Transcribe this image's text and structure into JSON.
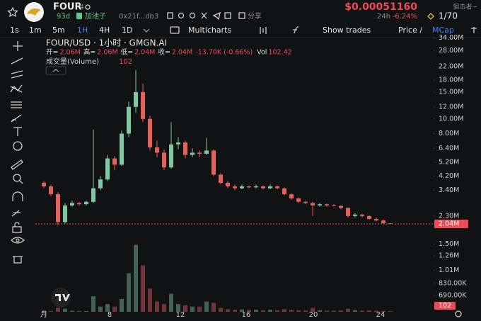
{
  "header": {
    "symbol": "FOUR",
    "holders": "4",
    "age": "93d",
    "add_pool": "加池子",
    "address": "0x21f...db3",
    "share": "分享",
    "price": "$0.00051160",
    "snipers": "狙击者~",
    "change_period": "24h",
    "change": "-6.24%",
    "rank": "1/70"
  },
  "toolbar": {
    "intervals": [
      "1s",
      "1m",
      "5m",
      "1H",
      "4H",
      "1D"
    ],
    "active_interval": "1H",
    "multicharts": "Multicharts",
    "show_trades": "Show trades",
    "price": "Price /",
    "mcap": "MCap"
  },
  "chart_data": {
    "type": "candlestick",
    "title": "FOUR/USD · 1小时 · GMGN.AI",
    "ohlc_keys": [
      "开=",
      "高=",
      "低=",
      "收="
    ],
    "ohlc_values": [
      "2.06M",
      "2.06M",
      "2.04M",
      "2.04M"
    ],
    "change": "-13.70K (-0.66%)",
    "volume_key": "Vol",
    "volume_title": "成交量(Volume)",
    "last_volume_label": "102",
    "log_scale": true,
    "grid": false,
    "up_color": "#7fc8a0",
    "down_color": "#e8605a",
    "x": [
      0,
      10,
      20,
      30,
      40,
      50,
      60,
      70,
      80,
      90,
      100,
      110,
      120,
      130,
      140,
      150,
      160,
      170,
      180,
      190,
      200,
      210,
      220,
      230,
      240,
      250,
      260,
      270,
      280,
      290,
      300,
      310,
      320,
      330,
      340,
      350,
      360,
      370,
      380,
      390,
      400,
      410,
      420,
      430,
      440,
      450,
      460,
      470,
      480,
      490
    ],
    "xlim": [
      -12,
      550
    ],
    "xticks": [
      {
        "value": 0,
        "label": "月"
      },
      {
        "value": 93,
        "label": "8"
      },
      {
        "value": 193,
        "label": "12"
      },
      {
        "value": 286,
        "label": "16"
      },
      {
        "value": 381,
        "label": "20"
      },
      {
        "value": 476,
        "label": "24"
      }
    ],
    "ylim": [
      540000,
      34600000
    ],
    "yticks": [
      {
        "value": 34000000,
        "label": "34.00M"
      },
      {
        "value": 28000000,
        "label": "28.00M"
      },
      {
        "value": 22000000,
        "label": "22.00M"
      },
      {
        "value": 18000000,
        "label": "18.00M"
      },
      {
        "value": 15000000,
        "label": "15.00M"
      },
      {
        "value": 12000000,
        "label": "12.00M"
      },
      {
        "value": 10000000,
        "label": "10.00M"
      },
      {
        "value": 8000000,
        "label": "8.00M"
      },
      {
        "value": 6400000,
        "label": "6.40M"
      },
      {
        "value": 5200000,
        "label": "5.20M"
      },
      {
        "value": 4200000,
        "label": "4.20M"
      },
      {
        "value": 3400000,
        "label": "3.40M"
      },
      {
        "value": 2300000,
        "label": "2.30M"
      },
      {
        "value": 1500000,
        "label": "1.50M"
      },
      {
        "value": 1260000,
        "label": "1.26M"
      },
      {
        "value": 1010000,
        "label": "1.01M"
      },
      {
        "value": 830000,
        "label": "830.00K"
      },
      {
        "value": 690000,
        "label": "690.00K"
      }
    ],
    "last_price": {
      "value": 2040000,
      "label": "2.04M"
    },
    "ohlc": [
      [
        3800000,
        3900000,
        3500000,
        3600000
      ],
      [
        3600000,
        3700000,
        3100000,
        3200000
      ],
      [
        3200000,
        3300000,
        2000000,
        2100000
      ],
      [
        2100000,
        2800000,
        2050000,
        2700000
      ],
      [
        2700000,
        2900000,
        2650000,
        2800000
      ],
      [
        2800000,
        2850000,
        2700000,
        2750000
      ],
      [
        2750000,
        2900000,
        2700000,
        2850000
      ],
      [
        2850000,
        8500000,
        2800000,
        3500000
      ],
      [
        3500000,
        4200000,
        3400000,
        4000000
      ],
      [
        4000000,
        5800000,
        3900000,
        5500000
      ],
      [
        5500000,
        5700000,
        4600000,
        5000000
      ],
      [
        5000000,
        8400000,
        4900000,
        8000000
      ],
      [
        8000000,
        13000000,
        7600000,
        12000000
      ],
      [
        12000000,
        21000000,
        11000000,
        15000000
      ],
      [
        15000000,
        17000000,
        9500000,
        10000000
      ],
      [
        10000000,
        10500000,
        6200000,
        6500000
      ],
      [
        6500000,
        7200000,
        5600000,
        6000000
      ],
      [
        6000000,
        6300000,
        4600000,
        4800000
      ],
      [
        4800000,
        9500000,
        4700000,
        6800000
      ],
      [
        6800000,
        7600000,
        6300000,
        7000000
      ],
      [
        7000000,
        7200000,
        5500000,
        5800000
      ],
      [
        5800000,
        6400000,
        5600000,
        6000000
      ],
      [
        6000000,
        6200000,
        5600000,
        5900000
      ],
      [
        5900000,
        7500000,
        5800000,
        6200000
      ],
      [
        6200000,
        6300000,
        4200000,
        4300000
      ],
      [
        4300000,
        4400000,
        3700000,
        3800000
      ],
      [
        3800000,
        3900000,
        3500000,
        3600000
      ],
      [
        3600000,
        3700000,
        3400000,
        3500000
      ],
      [
        3500000,
        3700000,
        3450000,
        3600000
      ],
      [
        3600000,
        3650000,
        3500000,
        3550000
      ],
      [
        3550000,
        3700000,
        3500000,
        3600000
      ],
      [
        3600000,
        3650000,
        3450000,
        3500000
      ],
      [
        3500000,
        3700000,
        3450000,
        3600000
      ],
      [
        3600000,
        3650000,
        3450000,
        3500000
      ],
      [
        3500000,
        3550000,
        3150000,
        3200000
      ],
      [
        3200000,
        3250000,
        2950000,
        3000000
      ],
      [
        3000000,
        3050000,
        2800000,
        2850000
      ],
      [
        2850000,
        2900000,
        2750000,
        2800000
      ],
      [
        2800000,
        2850000,
        2300000,
        2700000
      ],
      [
        2700000,
        2800000,
        2650000,
        2750000
      ],
      [
        2750000,
        2780000,
        2650000,
        2700000
      ],
      [
        2700000,
        2750000,
        2650000,
        2680000
      ],
      [
        2680000,
        2700000,
        2550000,
        2600000
      ],
      [
        2600000,
        2620000,
        2250000,
        2300000
      ],
      [
        2300000,
        2400000,
        2250000,
        2350000
      ],
      [
        2350000,
        2380000,
        2250000,
        2300000
      ],
      [
        2300000,
        2320000,
        2180000,
        2200000
      ],
      [
        2200000,
        2250000,
        2120000,
        2150000
      ],
      [
        2150000,
        2180000,
        2060000,
        2060000
      ],
      [
        2060000,
        2060000,
        2040000,
        2040000
      ]
    ],
    "volume": [
      80,
      120,
      600,
      480,
      160,
      120,
      120,
      2400,
      800,
      1200,
      800,
      2000,
      6000,
      10400,
      7200,
      3600,
      1600,
      1200,
      2800,
      1200,
      1000,
      800,
      800,
      1600,
      1400,
      600,
      400,
      320,
      360,
      280,
      320,
      240,
      320,
      240,
      400,
      320,
      240,
      200,
      600,
      240,
      160,
      160,
      200,
      480,
      240,
      160,
      200,
      160,
      120,
      102.42
    ],
    "vlim": [
      0,
      11000
    ]
  }
}
